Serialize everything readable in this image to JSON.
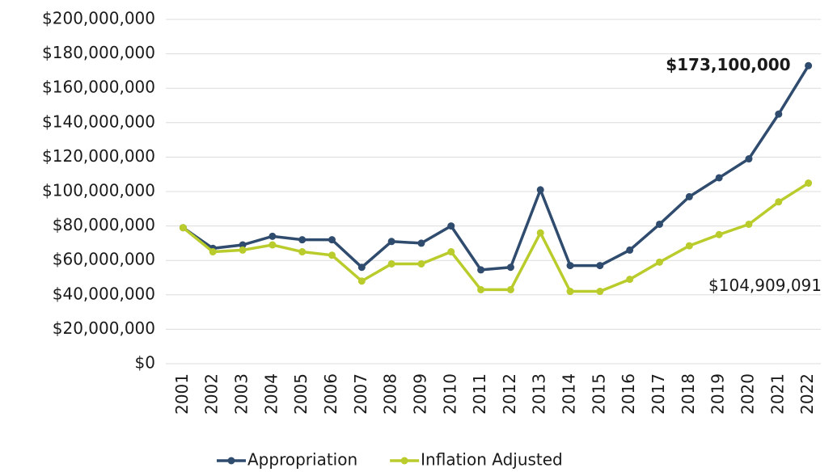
{
  "chart_data": {
    "type": "line",
    "categories": [
      "2001",
      "2002",
      "2003",
      "2004",
      "2005",
      "2006",
      "2007",
      "2008",
      "2009",
      "2010",
      "2011",
      "2012",
      "2013",
      "2014",
      "2015",
      "2016",
      "2017",
      "2018",
      "2019",
      "2020",
      "2021",
      "2022"
    ],
    "series": [
      {
        "name": "Appropriation",
        "color": "#2f4b6e",
        "values": [
          79000000,
          67000000,
          69000000,
          74000000,
          72000000,
          72000000,
          56000000,
          71000000,
          70000000,
          80000000,
          54500000,
          56000000,
          101000000,
          57000000,
          57000000,
          66000000,
          81000000,
          97000000,
          108000000,
          119000000,
          145000000,
          173100000
        ],
        "value_labels": [
          null,
          null,
          null,
          null,
          null,
          null,
          null,
          null,
          null,
          null,
          null,
          null,
          null,
          null,
          null,
          null,
          null,
          null,
          null,
          null,
          null,
          "$173,100,000"
        ]
      },
      {
        "name": "Inflation Adjusted",
        "color": "#b9cc2c",
        "values": [
          79000000,
          65000000,
          66000000,
          69000000,
          65000000,
          63000000,
          48000000,
          58000000,
          58000000,
          65000000,
          43000000,
          43000000,
          76000000,
          42000000,
          42000000,
          49000000,
          59000000,
          68500000,
          75000000,
          81000000,
          94000000,
          104909091
        ],
        "value_labels": [
          null,
          null,
          null,
          null,
          null,
          null,
          null,
          null,
          null,
          null,
          null,
          null,
          null,
          null,
          null,
          null,
          null,
          null,
          null,
          null,
          null,
          "$104,909,091"
        ]
      }
    ],
    "ylim": [
      0,
      200000000
    ],
    "yticks": [
      {
        "value": 0,
        "label": "$0"
      },
      {
        "value": 20000000,
        "label": "$20,000,000"
      },
      {
        "value": 40000000,
        "label": "$40,000,000"
      },
      {
        "value": 60000000,
        "label": "$60,000,000"
      },
      {
        "value": 80000000,
        "label": "$80,000,000"
      },
      {
        "value": 100000000,
        "label": "$100,000,000"
      },
      {
        "value": 120000000,
        "label": "$120,000,000"
      },
      {
        "value": 140000000,
        "label": "$140,000,000"
      },
      {
        "value": 160000000,
        "label": "$160,000,000"
      },
      {
        "value": 180000000,
        "label": "$180,000,000"
      },
      {
        "value": 200000000,
        "label": "$200,000,000"
      }
    ],
    "grid": true,
    "legend": "bottom"
  }
}
